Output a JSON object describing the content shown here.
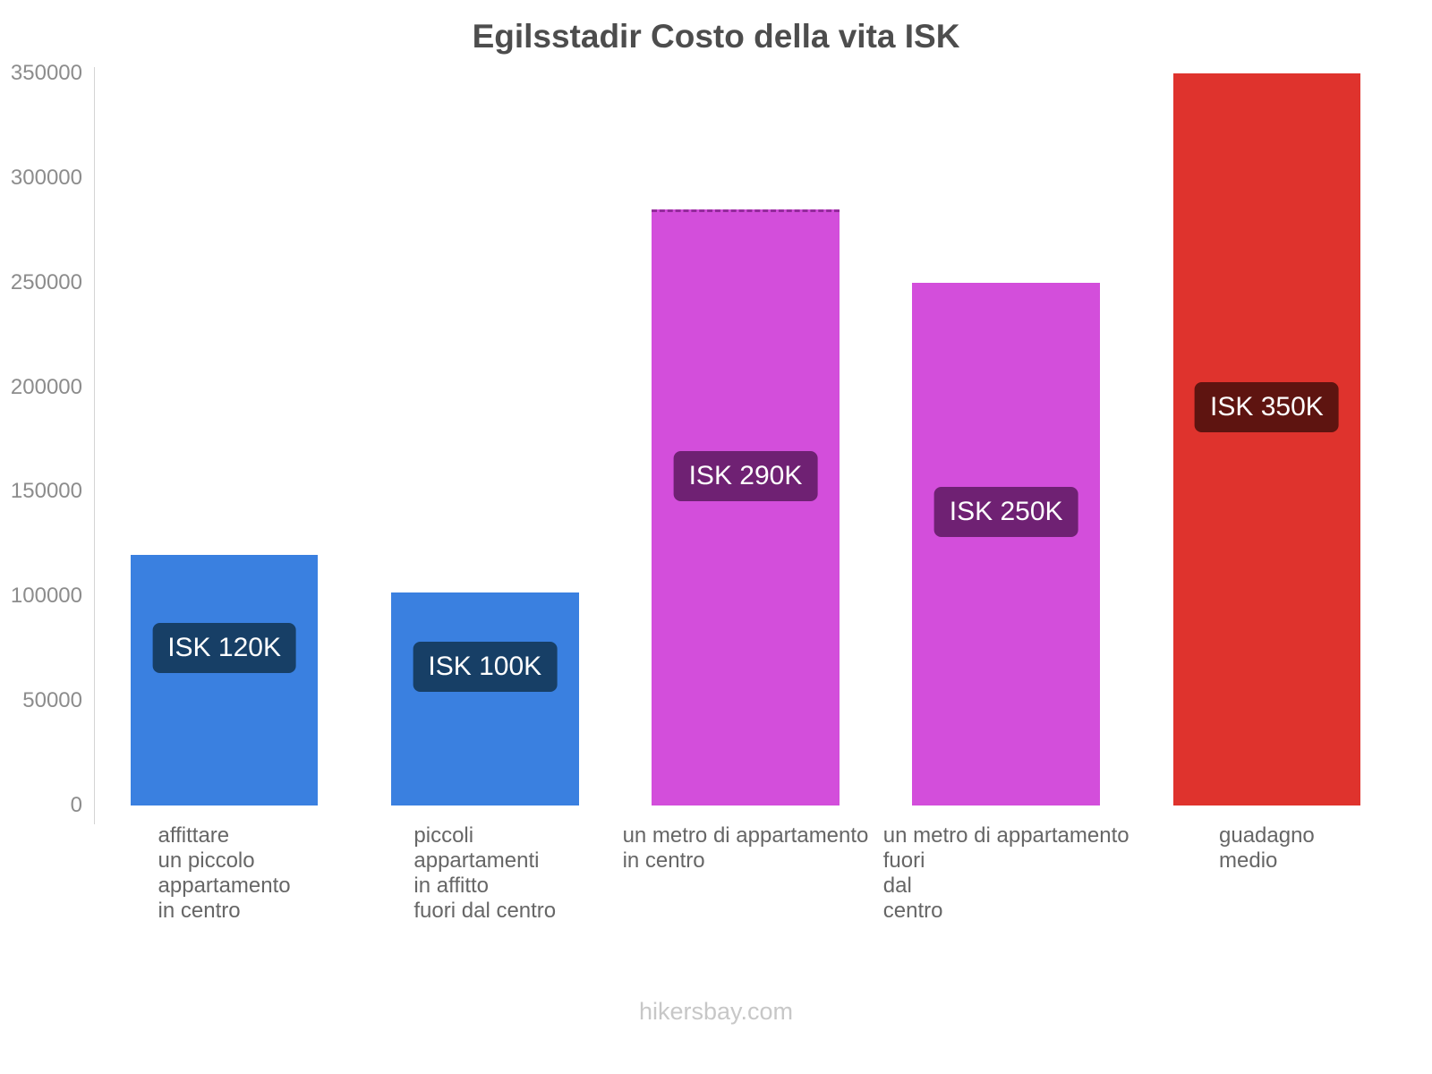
{
  "footer": {
    "text": "hikersbay.com"
  },
  "chart_data": {
    "type": "bar",
    "title": "Egilsstadir Costo della vita ISK",
    "xlabel": "",
    "ylabel": "",
    "currency": "ISK",
    "categories": [
      [
        "affittare",
        "un piccolo",
        "appartamento",
        "in centro"
      ],
      [
        "piccoli",
        "appartamenti",
        "in affitto",
        "fuori dal centro"
      ],
      [
        "un metro di appartamento",
        "in centro"
      ],
      [
        "un metro di appartamento",
        "fuori",
        "dal",
        "centro"
      ],
      [
        "guadagno",
        "medio"
      ]
    ],
    "values": [
      120000,
      102000,
      285000,
      250000,
      350000
    ],
    "bar_labels": [
      "ISK 120K",
      "ISK 100K",
      "ISK 290K",
      "ISK 250K",
      "ISK 350K"
    ],
    "bar_colors": [
      "#3a80e0",
      "#3a80e0",
      "#d34edb",
      "#d34edb",
      "#df332d"
    ],
    "label_bg_colors": [
      "#173f66",
      "#173f66",
      "#6f2173",
      "#6f2173",
      "#5e1410"
    ],
    "dashed_top": [
      false,
      false,
      true,
      false,
      false
    ],
    "ylim": [
      0,
      350000
    ],
    "yticks": [
      0,
      50000,
      100000,
      150000,
      200000,
      250000,
      300000,
      350000
    ],
    "grid": false,
    "legend": false
  }
}
